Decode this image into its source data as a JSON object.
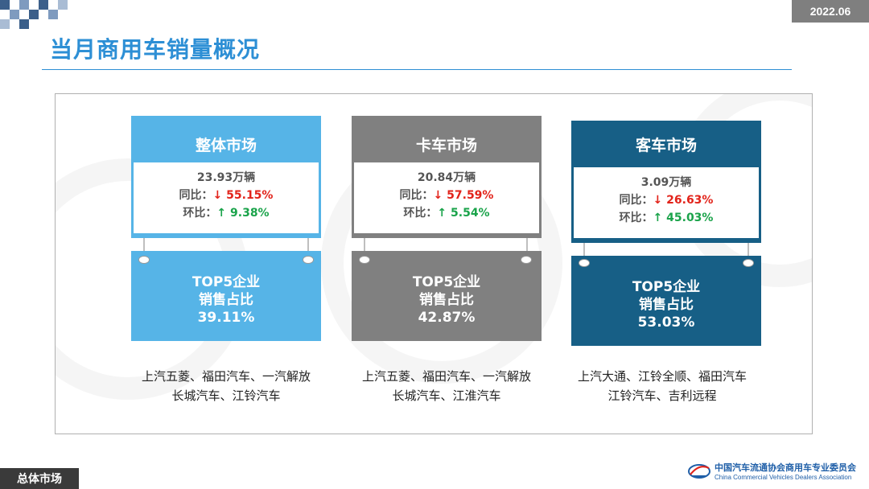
{
  "header": {
    "date": "2022.06",
    "title": "当月商用车销量概况"
  },
  "colors": {
    "overall": "#56b4e7",
    "truck": "#808080",
    "bus": "#175f86",
    "title": "#2d8fd5",
    "down": "#e2231a",
    "up": "#1aa34a"
  },
  "markets": [
    {
      "name": "整体市场",
      "volume": "23.93万辆",
      "yoy_label": "同比：",
      "yoy_arrow": "↓",
      "yoy_value": "55.15%",
      "mom_label": "环比：",
      "mom_arrow": "↑",
      "mom_value": "9.38%",
      "top5_line1": "TOP5企业",
      "top5_line2": "销售占比",
      "top5_share": "39.11%",
      "brands_line1": "上汽五菱、福田汽车、一汽解放",
      "brands_line2": "长城汽车、江铃汽车"
    },
    {
      "name": "卡车市场",
      "volume": "20.84万辆",
      "yoy_label": "同比：",
      "yoy_arrow": "↓",
      "yoy_value": "57.59%",
      "mom_label": "环比：",
      "mom_arrow": "↑",
      "mom_value": "5.54%",
      "top5_line1": "TOP5企业",
      "top5_line2": "销售占比",
      "top5_share": "42.87%",
      "brands_line1": "上汽五菱、福田汽车、一汽解放",
      "brands_line2": "长城汽车、江淮汽车"
    },
    {
      "name": "客车市场",
      "volume": "3.09万辆",
      "yoy_label": "同比：",
      "yoy_arrow": "↓",
      "yoy_value": "26.63%",
      "mom_label": "环比：",
      "mom_arrow": "↑",
      "mom_value": "45.03%",
      "top5_line1": "TOP5企业",
      "top5_line2": "销售占比",
      "top5_share": "53.03%",
      "brands_line1": "上汽大通、江铃全顺、福田汽车",
      "brands_line2": "江铃汽车、吉利远程"
    }
  ],
  "footer": {
    "section": "总体市场",
    "org_cn": "中国汽车流通协会商用车专业委员会",
    "org_en": "China Commercial Vehicles Dealers Association",
    "logo_icon": "ccda-logo-icon"
  }
}
